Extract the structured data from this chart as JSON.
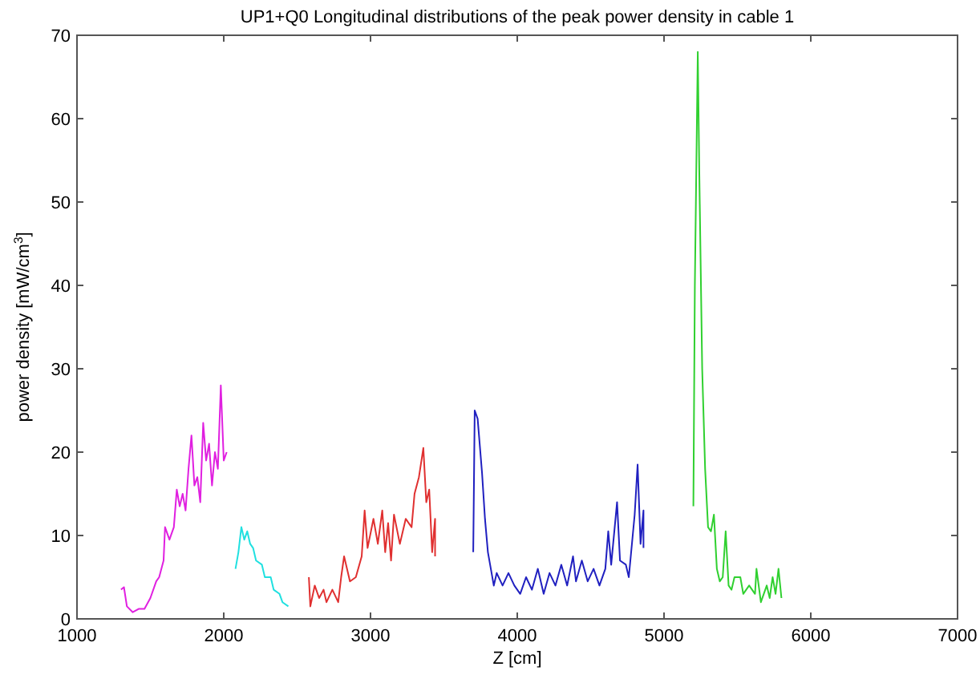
{
  "chart_data": {
    "type": "line",
    "title": "UP1+Q0 Longitudinal distributions of the peak power density in cable 1",
    "xlabel": "Z [cm]",
    "ylabel": "power density [mW/cm$^{3}$]",
    "xlim": [
      1000,
      7000
    ],
    "xticks": [
      1000,
      2000,
      3000,
      4000,
      5000,
      6000,
      7000
    ],
    "ylim": [
      0,
      70
    ],
    "yticks": [
      0,
      10,
      20,
      30,
      40,
      50,
      60,
      70
    ],
    "grid": false,
    "line_style": "solid",
    "series": [
      {
        "color": "#e020e0",
        "x": [
          1300,
          1320,
          1340,
          1380,
          1420,
          1460,
          1500,
          1540,
          1560,
          1590,
          1600,
          1630,
          1660,
          1680,
          1700,
          1720,
          1740,
          1760,
          1780,
          1800,
          1820,
          1840,
          1860,
          1880,
          1900,
          1920,
          1940,
          1960,
          1980,
          2000,
          2020
        ],
        "values": [
          3.5,
          3.8,
          1.5,
          0.8,
          1.2,
          1.2,
          2.5,
          4.5,
          5,
          7,
          11,
          9.5,
          11,
          15.5,
          13.5,
          15,
          13,
          18,
          22,
          16,
          17,
          14,
          23.5,
          19,
          21,
          16,
          20,
          18,
          28,
          19,
          20
        ]
      },
      {
        "color": "#20e0e0",
        "x": [
          2080,
          2100,
          2120,
          2140,
          2160,
          2180,
          2200,
          2220,
          2260,
          2280,
          2320,
          2340,
          2380,
          2400,
          2440
        ],
        "values": [
          6,
          8,
          11,
          9.5,
          10.5,
          9,
          8.5,
          7,
          6.5,
          5,
          5,
          3.5,
          3,
          2,
          1.5
        ]
      },
      {
        "color": "#e03030",
        "x": [
          2580,
          2590,
          2620,
          2650,
          2680,
          2700,
          2740,
          2780,
          2800,
          2820,
          2860,
          2900,
          2940,
          2960,
          2980,
          3020,
          3050,
          3080,
          3100,
          3120,
          3140,
          3160,
          3200,
          3240,
          3280,
          3300,
          3330,
          3360,
          3380,
          3400,
          3420,
          3440,
          3440
        ],
        "values": [
          5,
          1.5,
          4,
          2.5,
          3.5,
          2,
          3.5,
          2,
          5,
          7.5,
          4.5,
          5,
          7.5,
          13,
          8.5,
          12,
          9,
          13,
          8,
          11.5,
          7,
          12.5,
          9,
          12,
          11,
          15,
          17,
          20.5,
          14,
          15.5,
          8,
          12,
          7.5
        ]
      },
      {
        "color": "#2020c0",
        "x": [
          3700,
          3710,
          3730,
          3760,
          3780,
          3800,
          3820,
          3840,
          3860,
          3900,
          3940,
          3980,
          4020,
          4060,
          4100,
          4140,
          4180,
          4220,
          4260,
          4300,
          4340,
          4380,
          4400,
          4440,
          4480,
          4520,
          4560,
          4600,
          4620,
          4640,
          4680,
          4700,
          4740,
          4760,
          4800,
          4820,
          4840,
          4860,
          4860
        ],
        "values": [
          8,
          25,
          24,
          17.5,
          12,
          8,
          6,
          4,
          5.5,
          4,
          5.5,
          4,
          3,
          5,
          3.5,
          6,
          3,
          5.5,
          4,
          6.5,
          4,
          7.5,
          4.5,
          7,
          4.5,
          6,
          4,
          6,
          10.5,
          6.5,
          14,
          7,
          6.5,
          5,
          12.5,
          18.5,
          9,
          13,
          8.5
        ]
      },
      {
        "color": "#30d030",
        "x": [
          5200,
          5210,
          5230,
          5240,
          5260,
          5280,
          5300,
          5320,
          5340,
          5360,
          5380,
          5400,
          5420,
          5440,
          5460,
          5480,
          5520,
          5540,
          5580,
          5620,
          5630,
          5660,
          5700,
          5720,
          5740,
          5760,
          5780,
          5800
        ],
        "values": [
          13.5,
          40,
          68,
          54,
          30,
          18,
          11,
          10.5,
          12.5,
          6,
          4.5,
          5,
          10.5,
          4,
          3.5,
          5,
          5,
          3,
          4,
          3,
          6,
          2,
          4,
          2.5,
          5,
          3,
          6,
          2.5
        ]
      }
    ]
  }
}
